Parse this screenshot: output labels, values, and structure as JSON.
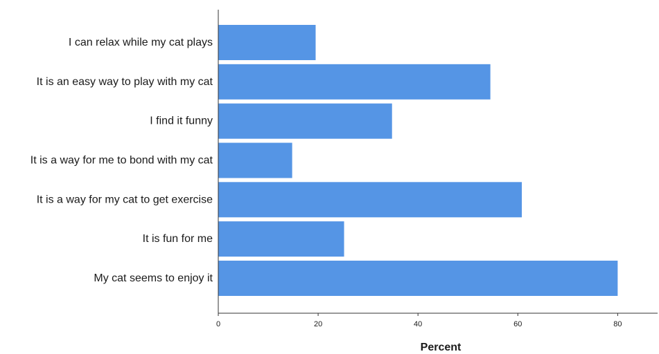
{
  "chart_data": {
    "type": "bar",
    "orientation": "horizontal",
    "categories": [
      "I can relax while my cat plays",
      "It is an easy way to play with my cat",
      "I find it funny",
      "It is a way for me to bond with my cat",
      "It is a way for my cat to get exercise",
      "It is fun for me",
      "My cat seems to enjoy it"
    ],
    "values": [
      19.5,
      54.5,
      34.8,
      14.8,
      60.8,
      25.2,
      80.0
    ],
    "xlabel": "Percent",
    "ylabel": "",
    "xlim": [
      0,
      88
    ],
    "xticks": [
      0,
      20,
      40,
      60,
      80
    ],
    "bar_color": "#5595e5",
    "grid": false,
    "legend": "none"
  }
}
